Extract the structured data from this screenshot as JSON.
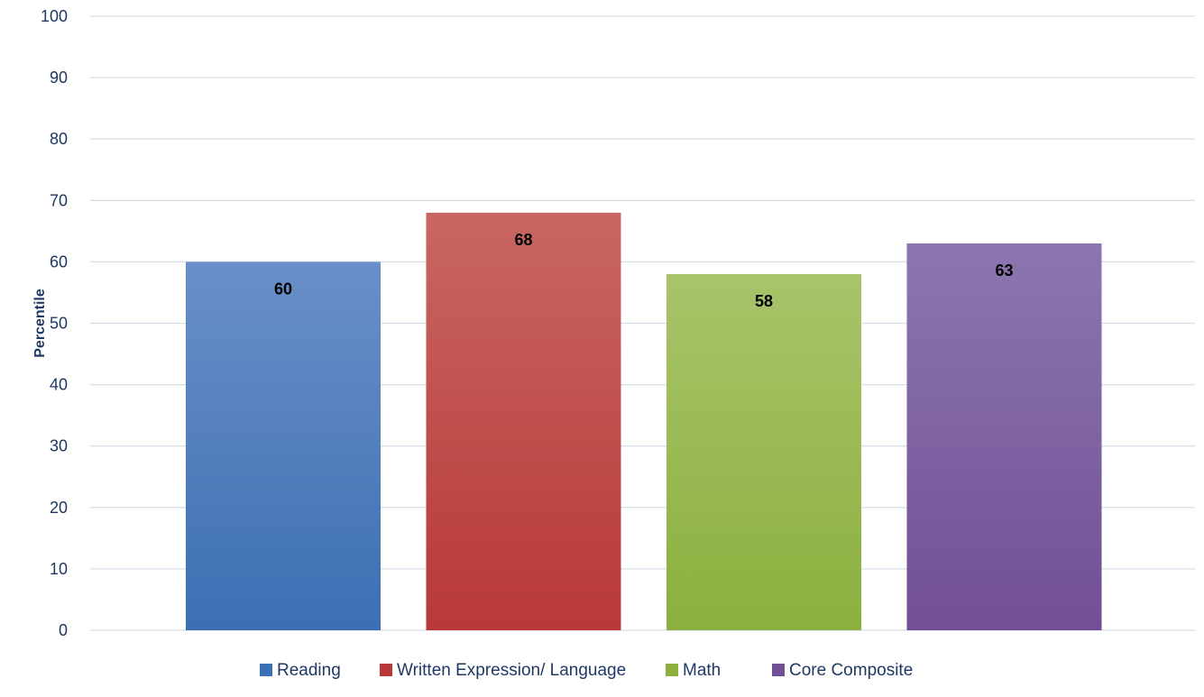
{
  "chart_data": {
    "type": "bar",
    "title": "",
    "xlabel": "",
    "ylabel": "Percentile",
    "ylim": [
      0,
      100
    ],
    "yticks": [
      0,
      10,
      20,
      30,
      40,
      50,
      60,
      70,
      80,
      90,
      100
    ],
    "grid": true,
    "legend_position": "bottom",
    "categories": [
      "Reading",
      "Written Expression/ Language",
      "Math",
      "Core Composite"
    ],
    "values": [
      60,
      68,
      58,
      63
    ],
    "colors": [
      {
        "name": "Reading",
        "top": "#6a8fc8",
        "bottom": "#3b70b3"
      },
      {
        "name": "Written Expression/ Language",
        "top": "#c86762",
        "bottom": "#b83838"
      },
      {
        "name": "Math",
        "top": "#a8c46a",
        "bottom": "#8bb03e"
      },
      {
        "name": "Core Composite",
        "top": "#8c76b0",
        "bottom": "#714f95"
      }
    ],
    "data_labels": true
  }
}
